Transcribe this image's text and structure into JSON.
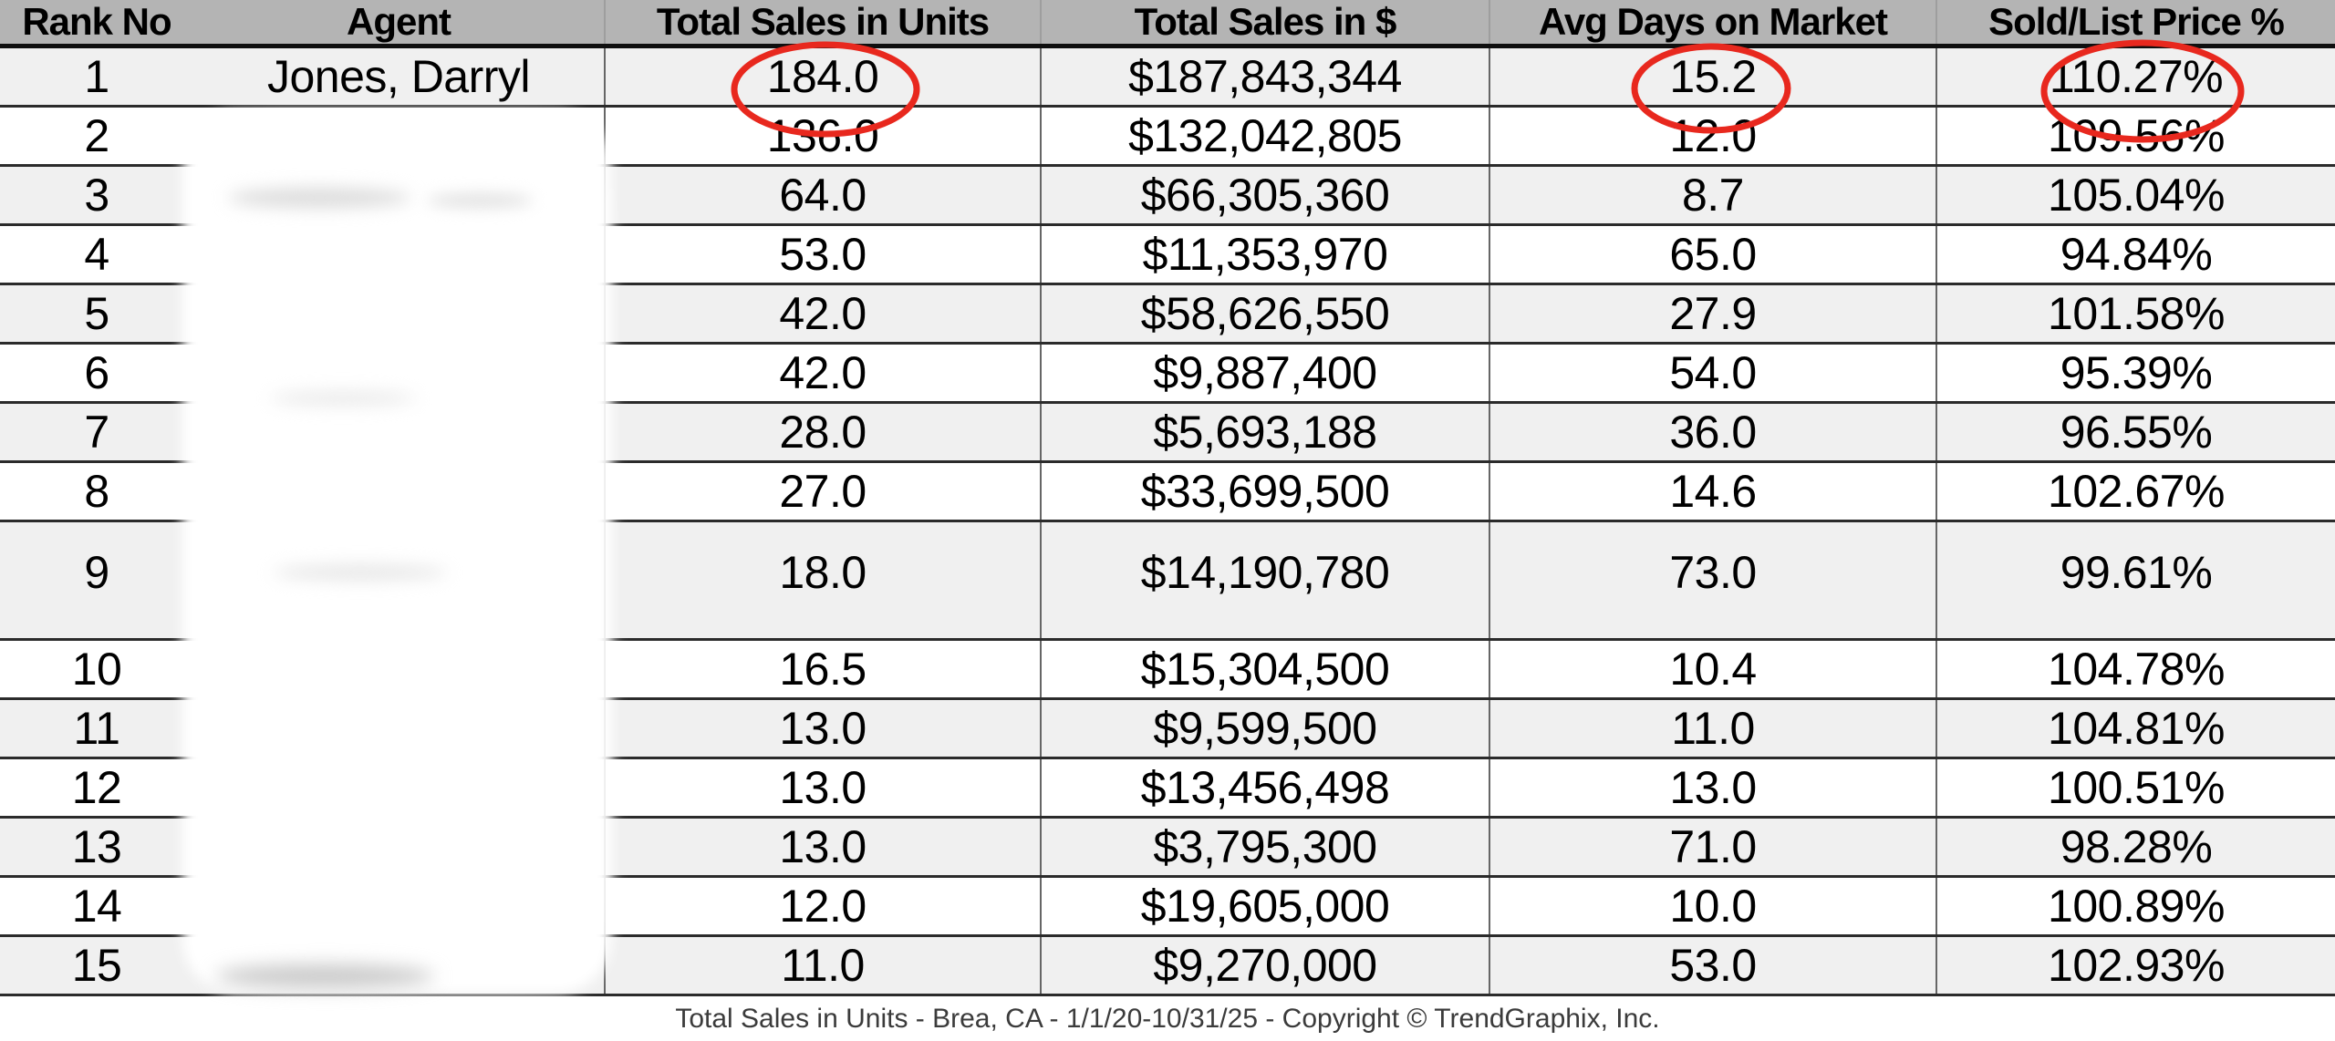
{
  "chart_data": {
    "type": "table",
    "title": "Total Sales in Units - Brea, CA - 1/1/20-10/31/25",
    "columns": [
      "Rank No",
      "Agent",
      "Total Sales in Units",
      "Total Sales in $",
      "Avg Days on Market",
      "Sold/List Price %"
    ],
    "rows": [
      [
        "1",
        "Jones, Darryl",
        "184.0",
        "$187,843,344",
        "15.2",
        "110.27%"
      ],
      [
        "2",
        "",
        "136.0",
        "$132,042,805",
        "12.0",
        "109.56%"
      ],
      [
        "3",
        "",
        "64.0",
        "$66,305,360",
        "8.7",
        "105.04%"
      ],
      [
        "4",
        "",
        "53.0",
        "$11,353,970",
        "65.0",
        "94.84%"
      ],
      [
        "5",
        "",
        "42.0",
        "$58,626,550",
        "27.9",
        "101.58%"
      ],
      [
        "6",
        "",
        "42.0",
        "$9,887,400",
        "54.0",
        "95.39%"
      ],
      [
        "7",
        "",
        "28.0",
        "$5,693,188",
        "36.0",
        "96.55%"
      ],
      [
        "8",
        "",
        "27.0",
        "$33,699,500",
        "14.6",
        "102.67%"
      ],
      [
        "9",
        "",
        "18.0",
        "$14,190,780",
        "73.0",
        "99.61%"
      ],
      [
        "10",
        "",
        "16.5",
        "$15,304,500",
        "10.4",
        "104.78%"
      ],
      [
        "11",
        "",
        "13.0",
        "$9,599,500",
        "11.0",
        "104.81%"
      ],
      [
        "12",
        "",
        "13.0",
        "$13,456,498",
        "13.0",
        "100.51%"
      ],
      [
        "13",
        "",
        "13.0",
        "$3,795,300",
        "71.0",
        "98.28%"
      ],
      [
        "14",
        "",
        "12.0",
        "$19,605,000",
        "10.0",
        "100.89%"
      ],
      [
        "15",
        "",
        "11.0",
        "$9,270,000",
        "53.0",
        "102.93%"
      ]
    ],
    "layout": {
      "double_height_row_rank": "9",
      "striping": "odd ranks shaded light gray",
      "grid": "horizontal rules between rows, vertical rules between numeric columns",
      "legend_position": "none"
    },
    "notes": "Agent names for ranks 2-15 are blurred out in the source image"
  },
  "footer": {
    "caption": "Total Sales in Units - Brea, CA - 1/1/20-10/31/25 - Copyright © TrendGraphix, Inc."
  },
  "annotations": {
    "circle_color": "#e8281e",
    "circled": [
      {
        "row_rank": "1",
        "column": "Total Sales in Units",
        "value": "184.0"
      },
      {
        "row_rank": "1",
        "column": "Avg Days on Market",
        "value": "15.2"
      },
      {
        "row_rank": "1",
        "column": "Sold/List Price %",
        "value": "110.27%"
      }
    ]
  },
  "colors": {
    "header_bg": "#b4b4b4",
    "stripe_bg": "#f0f0f0",
    "row_bg": "#ffffff",
    "rule_color": "#2b2b2b",
    "text": "#000000",
    "footer_text": "#3b3b3b"
  }
}
